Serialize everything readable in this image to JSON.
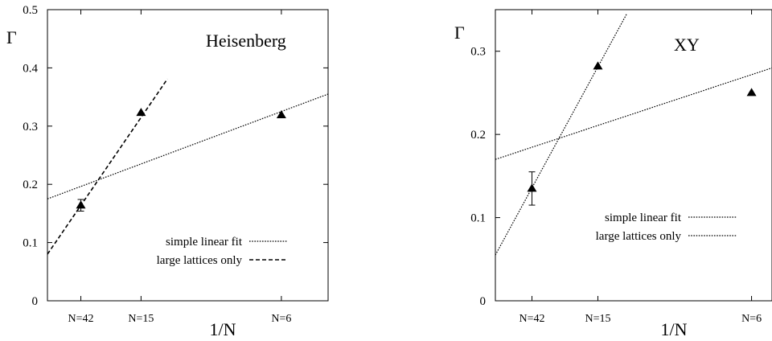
{
  "chart_data": [
    {
      "type": "scatter",
      "title": "Heisenberg",
      "xlabel": "1/N",
      "ylabel": "Γ",
      "xlim": [
        0,
        0.2
      ],
      "ylim": [
        0,
        0.5
      ],
      "yticks": [
        "0",
        "0.1",
        "0.2",
        "0.3",
        "0.4",
        "0.5"
      ],
      "x_categories": [
        {
          "label": "N=42",
          "x": 0.0238
        },
        {
          "label": "N=15",
          "x": 0.0667
        },
        {
          "label": "N=6",
          "x": 0.1667
        }
      ],
      "points": [
        {
          "x": 0.0238,
          "y": 0.164,
          "err": 0.01
        },
        {
          "x": 0.0667,
          "y": 0.323,
          "err": 0
        },
        {
          "x": 0.1667,
          "y": 0.319,
          "err": 0
        }
      ],
      "series": [
        {
          "name": "simple linear fit",
          "style": "dotted",
          "x": [
            0,
            0.2
          ],
          "y": [
            0.175,
            0.355
          ]
        },
        {
          "name": "large lattices only",
          "style": "dashed",
          "x": [
            0,
            0.0855
          ],
          "y": [
            0.08,
            0.381
          ]
        }
      ],
      "legend_position": "bottom-right"
    },
    {
      "type": "scatter",
      "title": "XY",
      "xlabel": "1/N",
      "ylabel": "Γ",
      "xlim": [
        0,
        0.18
      ],
      "ylim": [
        0,
        0.35
      ],
      "yticks": [
        "0",
        "0.1",
        "0.2",
        "0.3"
      ],
      "x_categories": [
        {
          "label": "N=42",
          "x": 0.0238
        },
        {
          "label": "N=15",
          "x": 0.0667
        },
        {
          "label": "N=6",
          "x": 0.1667
        }
      ],
      "points": [
        {
          "x": 0.0238,
          "y": 0.135,
          "err": 0.02
        },
        {
          "x": 0.0667,
          "y": 0.282,
          "err": 0
        },
        {
          "x": 0.1667,
          "y": 0.25,
          "err": 0
        }
      ],
      "series": [
        {
          "name": "simple linear fit",
          "style": "dotted",
          "x": [
            0,
            0.18
          ],
          "y": [
            0.17,
            0.28
          ]
        },
        {
          "name": "large lattices only",
          "style": "dotted",
          "x": [
            0,
            0.0855
          ],
          "y": [
            0.055,
            0.345
          ]
        }
      ],
      "legend_position": "bottom-right"
    }
  ]
}
